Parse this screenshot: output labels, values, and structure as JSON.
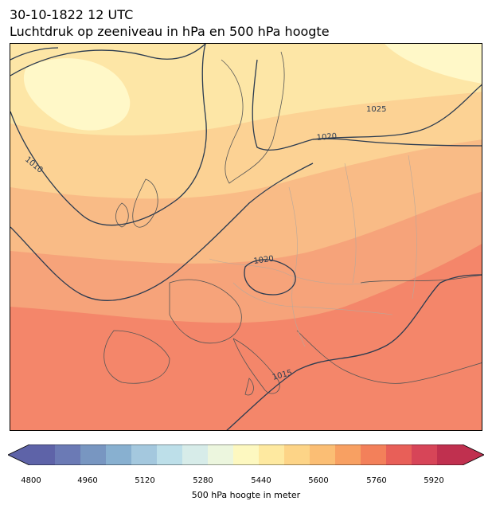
{
  "header": {
    "timestamp": "30-10-1822 12 UTC",
    "title": "Luchtdruk op zeeniveau in hPa en 500 hPa hoogte"
  },
  "map": {
    "isobar_labels": [
      "1010",
      "1025",
      "1020",
      "1020",
      "1015"
    ],
    "isobar_color": "#2b3b50",
    "field_colors": [
      "#f4866a",
      "#f6a37a",
      "#f9bb86",
      "#fcd294",
      "#fde6a6",
      "#fff8c8"
    ]
  },
  "colorbar": {
    "ticks": [
      "4800",
      "4960",
      "5120",
      "5280",
      "5440",
      "5600",
      "5760",
      "5920"
    ],
    "label": "500 hPa hoogte in meter",
    "range": [
      4800,
      6000
    ],
    "colors": [
      "#5e63a8",
      "#6b7ab5",
      "#7896c1",
      "#88b0d0",
      "#a4c8de",
      "#bddfe9",
      "#d7ece9",
      "#ecf6de",
      "#fdf8c0",
      "#fee9a0",
      "#fdd487",
      "#fbbe74",
      "#f8a062",
      "#f3805a",
      "#e85f58",
      "#d74558",
      "#c0304f"
    ]
  }
}
